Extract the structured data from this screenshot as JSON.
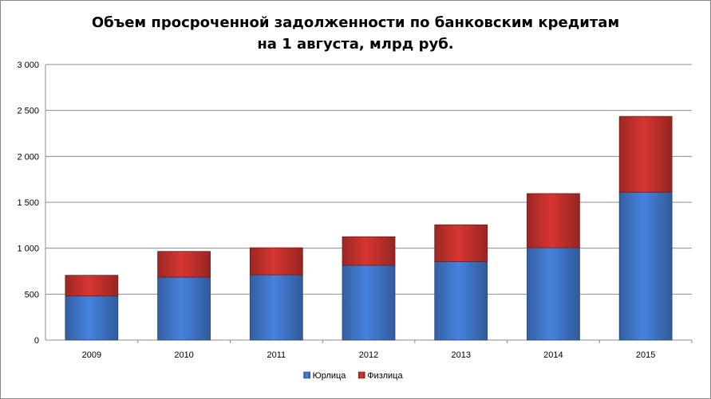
{
  "chart_data": {
    "type": "bar",
    "stacked": true,
    "title": [
      "Объем просроченной задолженности по банковским кредитам",
      "на 1 августа, млрд руб."
    ],
    "categories": [
      "2009",
      "2010",
      "2011",
      "2012",
      "2013",
      "2014",
      "2015"
    ],
    "series": [
      {
        "name": "Юрлица",
        "color": "#3f74c6",
        "values": [
          480,
          685,
          710,
          815,
          855,
          1005,
          1610
        ]
      },
      {
        "name": "Физлица",
        "color": "#c0302c",
        "values": [
          225,
          280,
          295,
          310,
          400,
          590,
          825
        ]
      }
    ],
    "ylim": [
      0,
      3000
    ],
    "yticks": [
      0,
      500,
      1000,
      1500,
      2000,
      2500,
      3000
    ],
    "ytick_labels": [
      "0",
      "500",
      "1 000",
      "1 500",
      "2 000",
      "2 500",
      "3 000"
    ],
    "grid": true,
    "legend": "bottom"
  }
}
